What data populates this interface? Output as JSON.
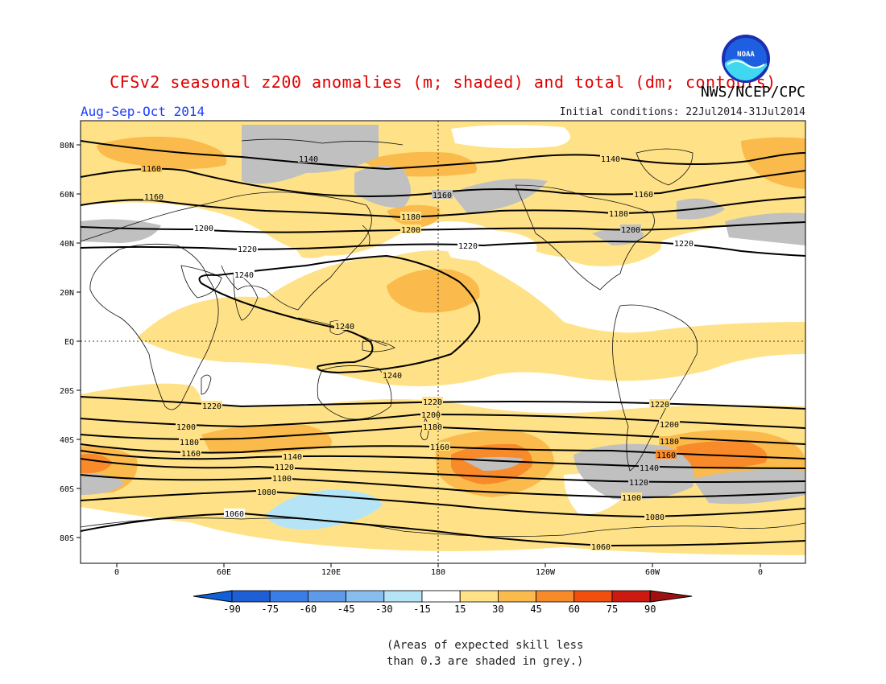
{
  "title": "CFSv2 seasonal z200 anomalies (m; shaded) and total (dm; contours)",
  "agency": "NWS/NCEP/CPC",
  "season": "Aug-Sep-Oct 2014",
  "initial_conditions": "Initial conditions: 22Jul2014-31Jul2014",
  "logo_text": "NOAA",
  "lat_labels": [
    "80N",
    "60N",
    "40N",
    "20N",
    "EQ",
    "20S",
    "40S",
    "60S",
    "80S"
  ],
  "lon_labels": [
    "0",
    "60E",
    "120E",
    "180",
    "120W",
    "60W",
    "0"
  ],
  "colorbar": {
    "ticks": [
      "-90",
      "-75",
      "-60",
      "-45",
      "-30",
      "-15",
      "15",
      "30",
      "45",
      "60",
      "75",
      "90"
    ],
    "colors": [
      "#1f5fd6",
      "#3a7de6",
      "#5d9ae8",
      "#89bdf0",
      "#b6e4f7",
      "#ffffff",
      "#ffe287",
      "#fbbb4c",
      "#f98a2a",
      "#f24f0e",
      "#cc1a10"
    ],
    "under_color": "#1060d8",
    "over_color": "#a01010"
  },
  "contour_labels": {
    "c1140a": "1140",
    "c1140b": "1140",
    "c1160a": "1160",
    "c1160b": "1160",
    "c1160c": "1160",
    "c1160d": "1160",
    "c1180a": "1180",
    "c1180b": "1180",
    "c1200a": "1200",
    "c1200b": "1200",
    "c1200c": "1200",
    "c1220a": "1220",
    "c1220b": "1220",
    "c1220c": "1220",
    "c1240a": "1240",
    "c1240b": "1240",
    "c1240c": "1240",
    "s1220a": "1220",
    "s1220b": "1220",
    "s1220c": "1220",
    "s1200a": "1200",
    "s1200b": "1200",
    "s1200c": "1200",
    "s1180a": "1180",
    "s1180b": "1180",
    "s1180c": "1180",
    "s1160a": "1160",
    "s1160b": "1160",
    "s1160c": "1160",
    "s1140a": "1140",
    "s1140b": "1140",
    "s1120a": "1120",
    "s1120b": "1120",
    "s1100a": "1100",
    "s1100b": "1100",
    "s1080a": "1080",
    "s1080b": "1080",
    "s1060a": "1060",
    "s1060b": "1060"
  },
  "note_line1": "(Areas of expected skill less",
  "note_line2": "than 0.3 are shaded in grey.)"
}
